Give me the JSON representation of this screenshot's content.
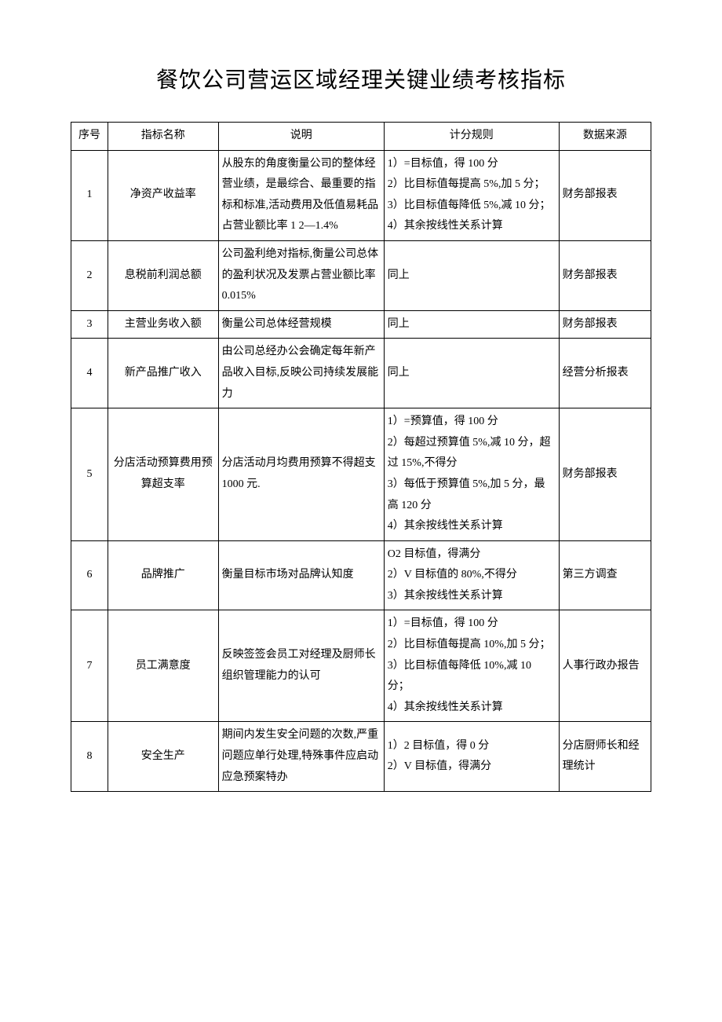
{
  "title": "餐饮公司营运区域经理关键业绩考核指标",
  "headers": {
    "seq": "序号",
    "name": "指标名称",
    "desc": "说明",
    "rule": "计分规则",
    "src": "数据来源"
  },
  "rows": [
    {
      "seq": "1",
      "name": "净资产收益率",
      "desc": "从股东的角度衡量公司的整体经营业绩，是最综合、最重要的指标和标准,活动费用及低值易耗品占营业额比率 1 2—1.4%",
      "rule": "1）=目标值，得 100 分\n2）比目标值每提高 5%,加 5 分；\n3）比目标值每降低 5%,减 10 分；\n4）其余按线性关系计算",
      "src": "财务部报表"
    },
    {
      "seq": "2",
      "name": "息税前利润总额",
      "desc": "公司盈利绝对指标,衡量公司总体的盈利状况及发票占营业额比率 0.015%",
      "rule": "同上",
      "src": "财务部报表"
    },
    {
      "seq": "3",
      "name": "主营业务收入额",
      "desc": "衡量公司总体经营规模",
      "rule": "同上",
      "src": "财务部报表"
    },
    {
      "seq": "4",
      "name": "新产品推广收入",
      "desc": "由公司总经办公会确定每年新产品收入目标,反映公司持续发展能力",
      "rule": "同上",
      "src": "经营分析报表"
    },
    {
      "seq": "5",
      "name": "分店活动预算费用预算超支率",
      "desc": "分店活动月均费用预算不得超支 1000 元.",
      "rule": "1）=预算值，得 100 分\n2）每超过预算值 5%,减 10 分，超过 15%,不得分\n3）每低于预算值 5%,加 5 分，最高 120 分\n4）其余按线性关系计算",
      "src": "财务部报表"
    },
    {
      "seq": "6",
      "name": "品牌推广",
      "desc": "衡量目标市场对品牌认知度",
      "rule": "O2 目标值，得满分\n2）V 目标值的 80%,不得分\n3）其余按线性关系计算",
      "src": "第三方调查"
    },
    {
      "seq": "7",
      "name": "员工满意度",
      "desc": "反映签签会员工对经理及厨师长组织管理能力的认可",
      "rule": "1）=目标值，得 100 分\n2）比目标值每提高 10%,加 5 分；\n3）比目标值每降低 10%,减 10 分；\n4）其余按线性关系计算",
      "src": "人事行政办报告"
    },
    {
      "seq": "8",
      "name": "安全生产",
      "desc": "期间内发生安全问题的次数,严重问题应单行处理,特殊事件应启动应急预案特办",
      "rule": "1）2 目标值，得 0 分\n2）V 目标值，得满分",
      "src": "分店厨师长和经理统计"
    }
  ]
}
